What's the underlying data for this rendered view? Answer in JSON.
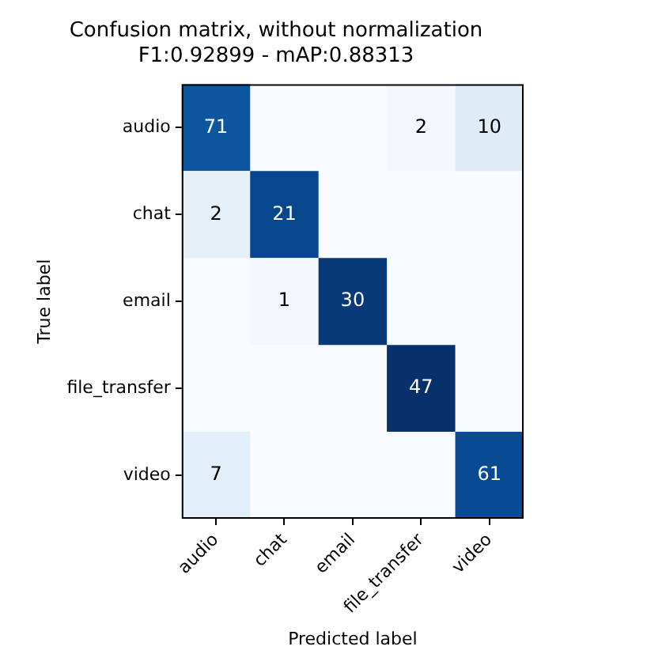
{
  "chart_data": {
    "type": "heatmap",
    "title": "Confusion matrix, without normalization",
    "subtitle": "F1:0.92899 - mAP:0.88313",
    "xlabel": "Predicted label",
    "data_labels": true,
    "ylabel": "True label",
    "categories": [
      "audio",
      "chat",
      "email",
      "file_transfer",
      "video"
    ],
    "y_categories": [
      "audio",
      "chat",
      "email",
      "file_transfer",
      "video"
    ],
    "cells": [
      [
        71,
        null,
        null,
        2,
        10
      ],
      [
        2,
        21,
        null,
        null,
        null
      ],
      [
        null,
        1,
        30,
        null,
        null
      ],
      [
        null,
        null,
        null,
        47,
        null
      ],
      [
        7,
        null,
        null,
        null,
        61
      ]
    ]
  }
}
